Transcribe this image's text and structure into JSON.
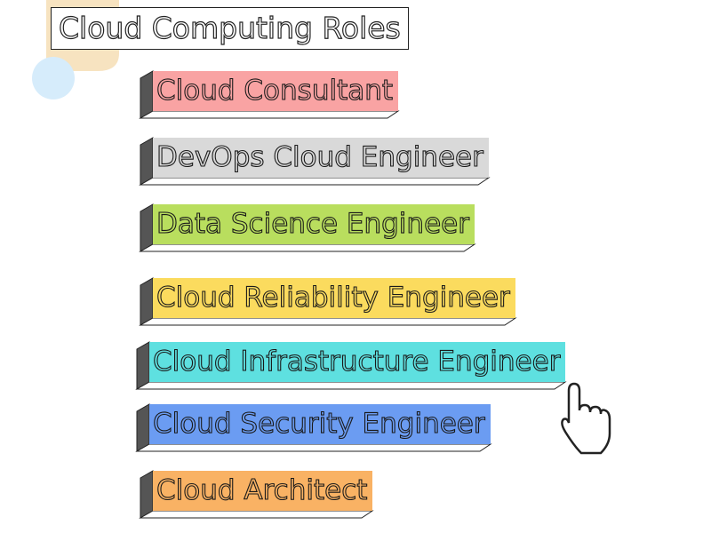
{
  "title": "Cloud Computing Roles",
  "roles": [
    {
      "label": "Cloud Consultant",
      "color": "#f9a3a3"
    },
    {
      "label": "DevOps Cloud Engineer",
      "color": "#d9d9d9"
    },
    {
      "label": "Data Science Engineer",
      "color": "#b9de5e"
    },
    {
      "label": "Cloud Reliability Engineer",
      "color": "#fbdb5e"
    },
    {
      "label": "Cloud Infrastructure Engineer",
      "color": "#5ee0e0"
    },
    {
      "label": "Cloud Security Engineer",
      "color": "#6b9cf2"
    },
    {
      "label": "Cloud Architect",
      "color": "#f9b264"
    }
  ]
}
